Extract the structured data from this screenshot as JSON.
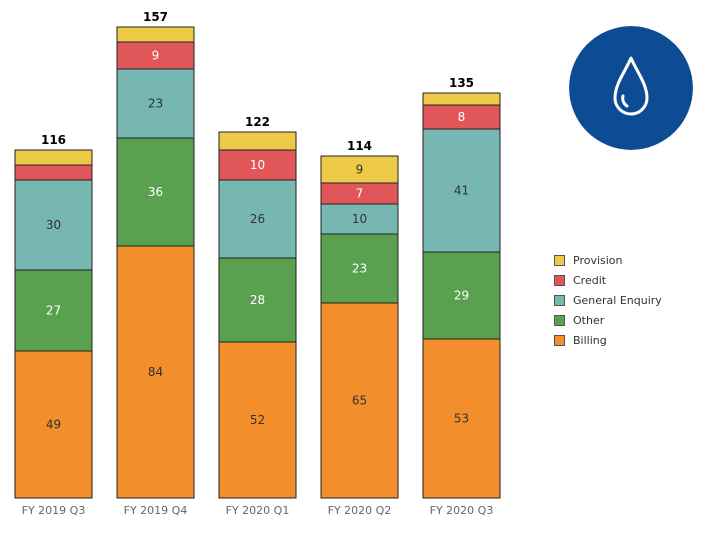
{
  "chart_data": {
    "type": "bar",
    "stacked": true,
    "categories": [
      "FY 2019 Q3",
      "FY 2019 Q4",
      "FY 2020 Q1",
      "FY 2020 Q2",
      "FY 2020 Q3"
    ],
    "series": [
      {
        "name": "Billing",
        "color": "#f28e2b",
        "values": [
          49,
          84,
          52,
          65,
          53
        ],
        "labels": [
          "49",
          "84",
          "52",
          "65",
          "53"
        ],
        "label_color": "#333333"
      },
      {
        "name": "Other",
        "color": "#59a14f",
        "values": [
          27,
          36,
          28,
          23,
          29
        ],
        "labels": [
          "27",
          "36",
          "28",
          "23",
          "29"
        ],
        "label_color": "#ffffff"
      },
      {
        "name": "General Enquiry",
        "color": "#76b7b2",
        "values": [
          30,
          23,
          26,
          10,
          41
        ],
        "labels": [
          "30",
          "23",
          "26",
          "10",
          "41"
        ],
        "label_color": "#333333"
      },
      {
        "name": "Credit",
        "color": "#e15759",
        "values": [
          5,
          9,
          10,
          7,
          8
        ],
        "labels": [
          "",
          "9",
          "10",
          "7",
          "8"
        ],
        "label_color": "#ffffff"
      },
      {
        "name": "Provision",
        "color": "#edc948",
        "values": [
          5,
          5,
          6,
          9,
          4
        ],
        "labels": [
          "",
          "",
          "",
          "9",
          ""
        ],
        "label_color": "#333333"
      }
    ],
    "totals": [
      "116",
      "157",
      "122",
      "114",
      "135"
    ],
    "ylim": [
      0,
      160
    ],
    "legend_position": "right",
    "legend_order": [
      "Provision",
      "Credit",
      "General Enquiry",
      "Other",
      "Billing"
    ],
    "grid": false
  },
  "logo": {
    "icon": "water-drop-icon",
    "color": "#0d4c95"
  }
}
